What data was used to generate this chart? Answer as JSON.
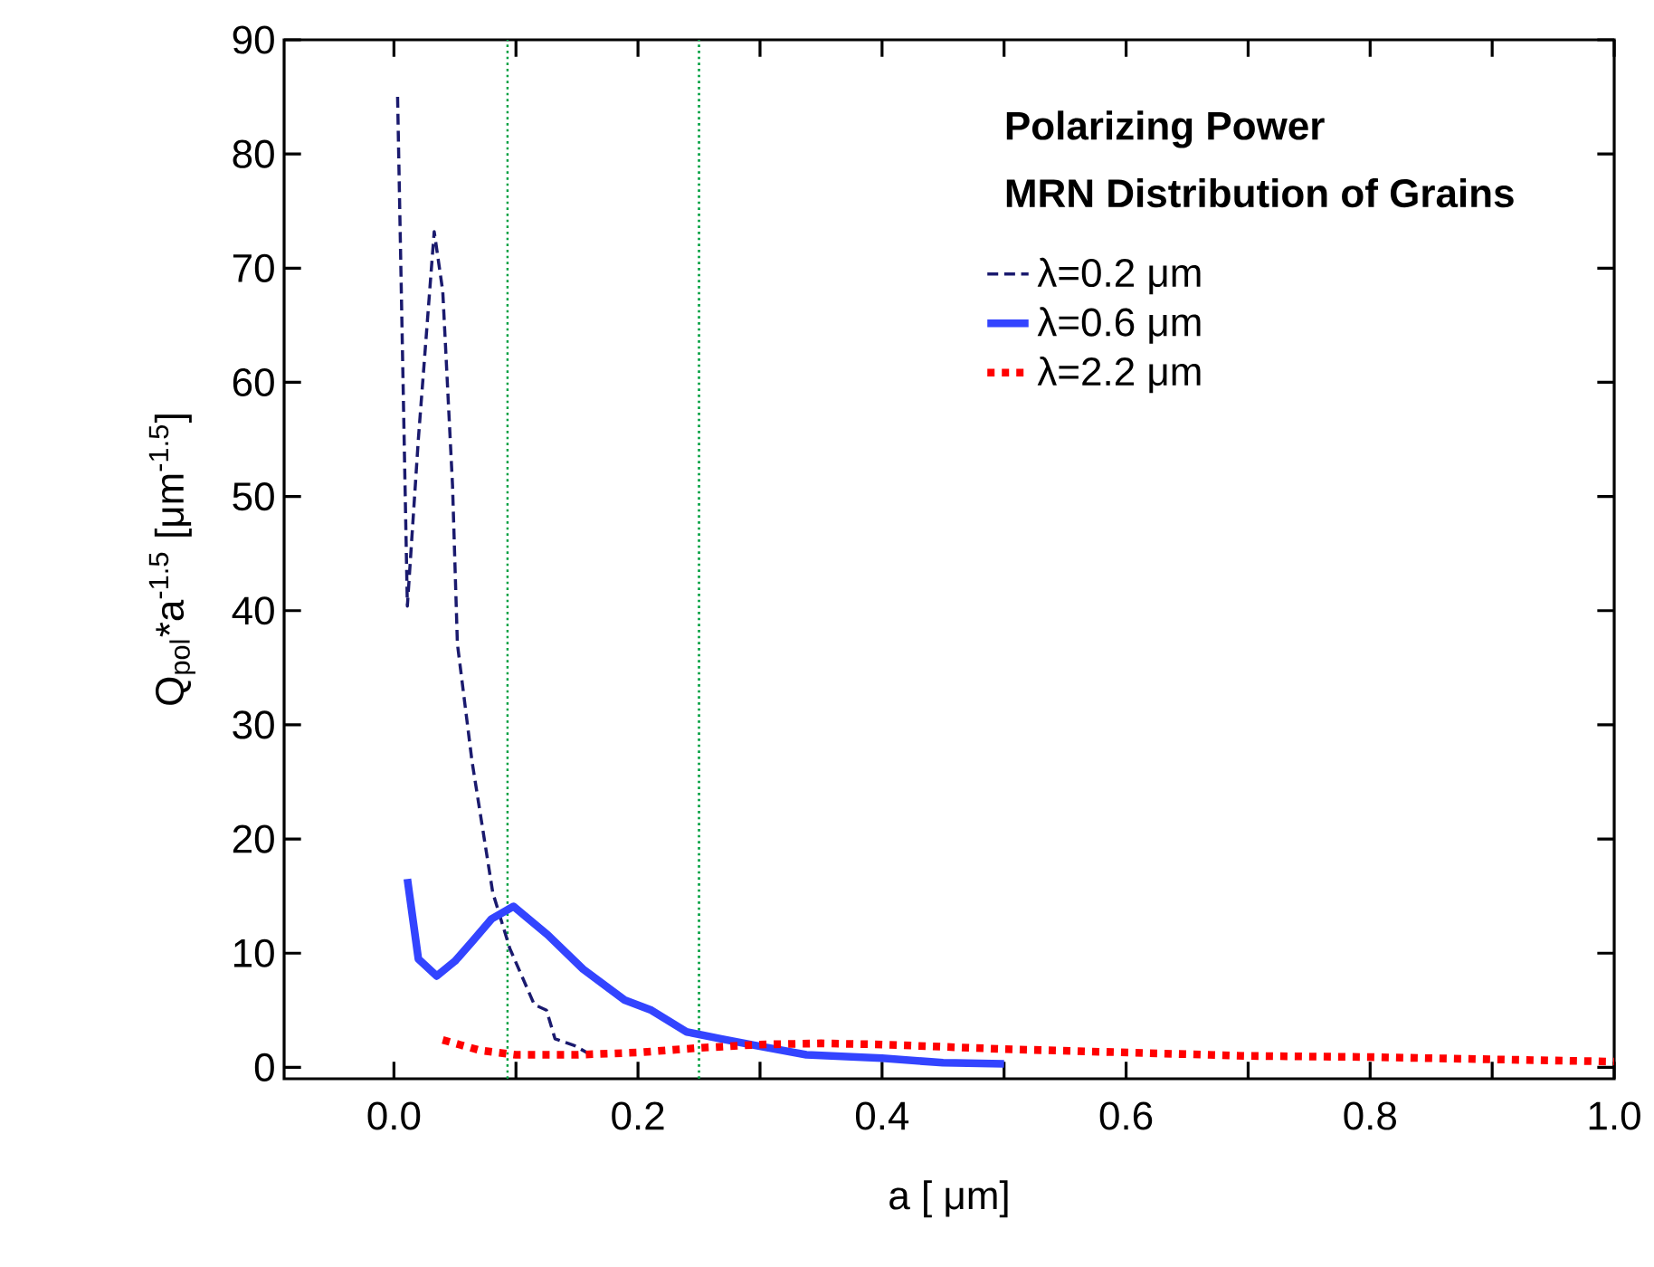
{
  "chart_data": {
    "type": "line",
    "title": "Polarizing Power",
    "subtitle": "MRN Distribution of Grains",
    "xlabel": "a [ μm]",
    "ylabel": "Q$_{pol}$*a$^{-1.5}$ [μm$^{-1.5}$]",
    "xlim": [
      -0.09,
      1.0
    ],
    "ylim": [
      -1,
      90
    ],
    "xticks": [
      {
        "value": 0,
        "label": "0.0"
      },
      {
        "value": 0.1,
        "label": null
      },
      0.2,
      {
        "value": 0.3,
        "label": null
      },
      0.4,
      {
        "value": 0.5,
        "label": null
      },
      0.6,
      {
        "value": 0.7,
        "label": null
      },
      0.8,
      {
        "value": 0.9,
        "label": null
      },
      {
        "value": 1.0,
        "label": "1.0"
      }
    ],
    "yticks": [
      0,
      10,
      20,
      30,
      40,
      50,
      60,
      70,
      80,
      90
    ],
    "grid": false,
    "legend": "top right",
    "marker": "none",
    "ref_lines": [
      {
        "axis": "x",
        "value": 0.093,
        "color": "#00a040",
        "line_style": "dotted"
      },
      {
        "axis": "x",
        "value": 0.25,
        "color": "#00a040",
        "line_style": "dotted"
      }
    ],
    "series": [
      {
        "name": "λ=0.2  μm",
        "color": "#1a1a6e",
        "line_style": "dashed",
        "x": [
          0.003,
          0.011,
          0.02,
          0.033,
          0.04,
          0.048,
          0.052,
          0.064,
          0.081,
          0.095,
          0.115,
          0.125,
          0.132,
          0.148,
          0.163
        ],
        "values": [
          85,
          40.4,
          55,
          73.2,
          68,
          51,
          37.1,
          26.8,
          15.3,
          10.4,
          5.5,
          5.0,
          2.5,
          1.9,
          1.0
        ]
      },
      {
        "name": "λ=0.6  μm",
        "color": "#3344ff",
        "line_style": "solid",
        "x": [
          0.011,
          0.02,
          0.035,
          0.05,
          0.064,
          0.08,
          0.098,
          0.126,
          0.155,
          0.189,
          0.211,
          0.24,
          0.268,
          0.297,
          0.338,
          0.4,
          0.45,
          0.5
        ],
        "values": [
          16.5,
          9.5,
          8.0,
          9.3,
          11,
          13,
          14.1,
          11.6,
          8.6,
          5.9,
          5.0,
          3.1,
          2.5,
          1.9,
          1.1,
          0.8,
          0.4,
          0.3
        ]
      },
      {
        "name": "λ=2.2  μm",
        "color": "#ff0000",
        "line_style": "dotted",
        "x": [
          0.04,
          0.07,
          0.1,
          0.15,
          0.2,
          0.25,
          0.3,
          0.35,
          0.4,
          0.5,
          0.6,
          0.7,
          0.8,
          0.9,
          1.0
        ],
        "values": [
          2.4,
          1.5,
          1.1,
          1.1,
          1.3,
          1.7,
          2.0,
          2.1,
          2.0,
          1.6,
          1.3,
          1.0,
          0.9,
          0.7,
          0.5
        ]
      }
    ]
  }
}
